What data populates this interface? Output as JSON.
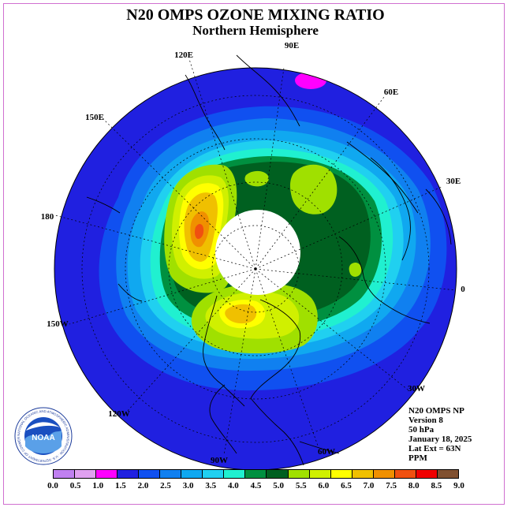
{
  "header": {
    "title": "N20 OMPS OZONE MIXING RATIO",
    "subtitle": "Northern Hemisphere"
  },
  "longitude_labels": [
    "90E",
    "60E",
    "30E",
    "0",
    "30W",
    "60W",
    "90W",
    "120W",
    "150W",
    "180",
    "150E",
    "120E"
  ],
  "info": {
    "instrument": "N20 OMPS NP",
    "version": "Version 8",
    "level": "50 hPa",
    "date": "January 18, 2025",
    "lat_ext": "Lat Ext = 63N",
    "units": "PPM"
  },
  "logo": {
    "text": "NOAA",
    "ring_text": "NATIONAL OCEANIC AND ATMOSPHERIC ADMINISTRATION · U.S. DEPARTMENT OF COMMERCE"
  },
  "legend": {
    "ticks": [
      "0.0",
      "0.5",
      "1.0",
      "1.5",
      "2.0",
      "2.5",
      "3.0",
      "3.5",
      "4.0",
      "4.5",
      "5.0",
      "5.5",
      "6.0",
      "6.5",
      "7.0",
      "7.5",
      "8.0",
      "8.5",
      "9.0"
    ],
    "colors": [
      "#c080f0",
      "#e0a0f0",
      "#ff00ff",
      "#2020e0",
      "#1050f0",
      "#1080f0",
      "#10a8f0",
      "#20d0f0",
      "#20f0d0",
      "#009040",
      "#006020",
      "#a0e000",
      "#d0f000",
      "#ffff00",
      "#f0c000",
      "#f09000",
      "#f05010",
      "#f00000",
      "#805030"
    ]
  },
  "map": {
    "colors": {
      "c2_0": "#2020e0",
      "c2_5": "#1050f0",
      "c3_0": "#1080f0",
      "c3_5": "#10a8f0",
      "c4_0": "#20d0f0",
      "c4_5": "#20f0d0",
      "c5_0": "#009040",
      "c5_5": "#006020",
      "c6_0": "#a0e000",
      "c6_5": "#d0f000",
      "c7_0": "#ffff00",
      "c7_5": "#f0c000",
      "c8_0": "#f09000",
      "c8_5": "#f05010",
      "magenta": "#ff00ff",
      "no_data": "#ffffff"
    }
  }
}
